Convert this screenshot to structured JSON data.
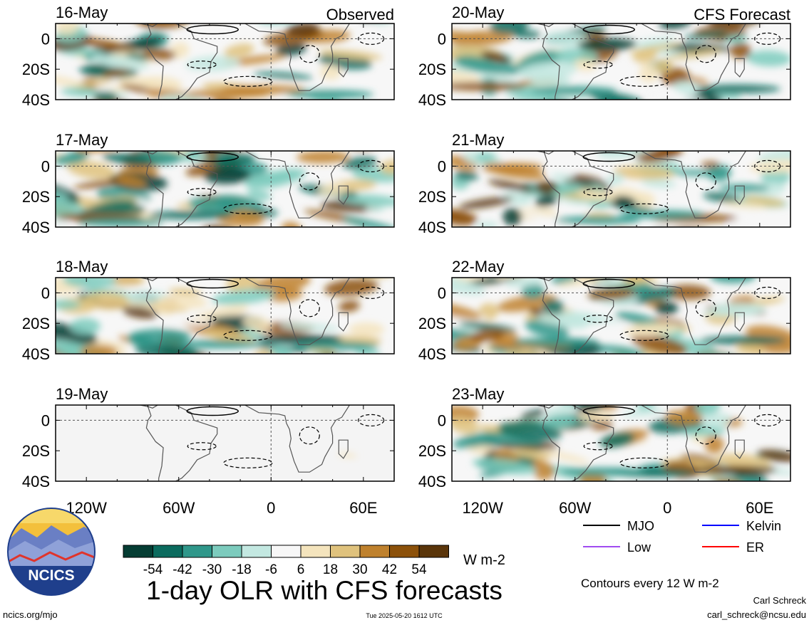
{
  "chart_data": [
    {
      "type": "heatmap",
      "title": "16-May",
      "corner_label": "Observed",
      "source": "observed"
    },
    {
      "type": "heatmap",
      "title": "17-May",
      "source": "observed"
    },
    {
      "type": "heatmap",
      "title": "18-May",
      "source": "observed"
    },
    {
      "type": "heatmap",
      "title": "19-May",
      "source": "observed"
    },
    {
      "type": "heatmap",
      "title": "20-May",
      "corner_label": "CFS Forecast",
      "source": "forecast"
    },
    {
      "type": "heatmap",
      "title": "21-May",
      "source": "forecast"
    },
    {
      "type": "heatmap",
      "title": "22-May",
      "source": "forecast"
    },
    {
      "type": "heatmap",
      "title": "23-May",
      "source": "forecast"
    }
  ],
  "axes": {
    "y_ticks": [
      {
        "label": "0",
        "lat": 0
      },
      {
        "label": "20S",
        "lat": -20
      },
      {
        "label": "40S",
        "lat": -40
      }
    ],
    "x_ticks": [
      {
        "label": "120W",
        "lon": -120
      },
      {
        "label": "60W",
        "lon": -60
      },
      {
        "label": "0",
        "lon": 0
      },
      {
        "label": "60E",
        "lon": 60
      }
    ],
    "lon_range": [
      -140,
      80
    ],
    "lat_range": [
      -40,
      10
    ]
  },
  "colorbar": {
    "unit": "W m-2",
    "levels": [
      -54,
      -42,
      -30,
      -18,
      -6,
      6,
      18,
      30,
      42,
      54
    ],
    "labels": [
      "-54",
      "-42",
      "-30",
      "-18",
      "-6",
      "6",
      "18",
      "30",
      "42",
      "54"
    ],
    "colors": [
      "#053d33",
      "#0b6b5e",
      "#2f978a",
      "#7ccbbd",
      "#c3e8e1",
      "#f7f7f7",
      "#f4e4bd",
      "#dfc27d",
      "#bf812d",
      "#8c510a",
      "#5a350a"
    ]
  },
  "legend": {
    "items": [
      {
        "label": "MJO",
        "color": "#000000"
      },
      {
        "label": "Kelvin",
        "color": "#0000ff"
      },
      {
        "label": "Low",
        "color": "#a04cf0"
      },
      {
        "label": "ER",
        "color": "#ff0000"
      }
    ],
    "contours_note": "Contours every 12 W m-2"
  },
  "footer": {
    "title": "1-day OLR with CFS forecasts",
    "org": "NCICS",
    "url": "ncics.org/mjo",
    "timestamp": "Tue 2025-05-20 1612 UTC",
    "author": "Carl Schreck",
    "email": "carl_schreck@ncsu.edu"
  },
  "colors": {
    "dry": "#bf812d",
    "wet": "#2f978a",
    "neutral": "#f7f7f7",
    "empty_panel": "#f4f4f4"
  }
}
